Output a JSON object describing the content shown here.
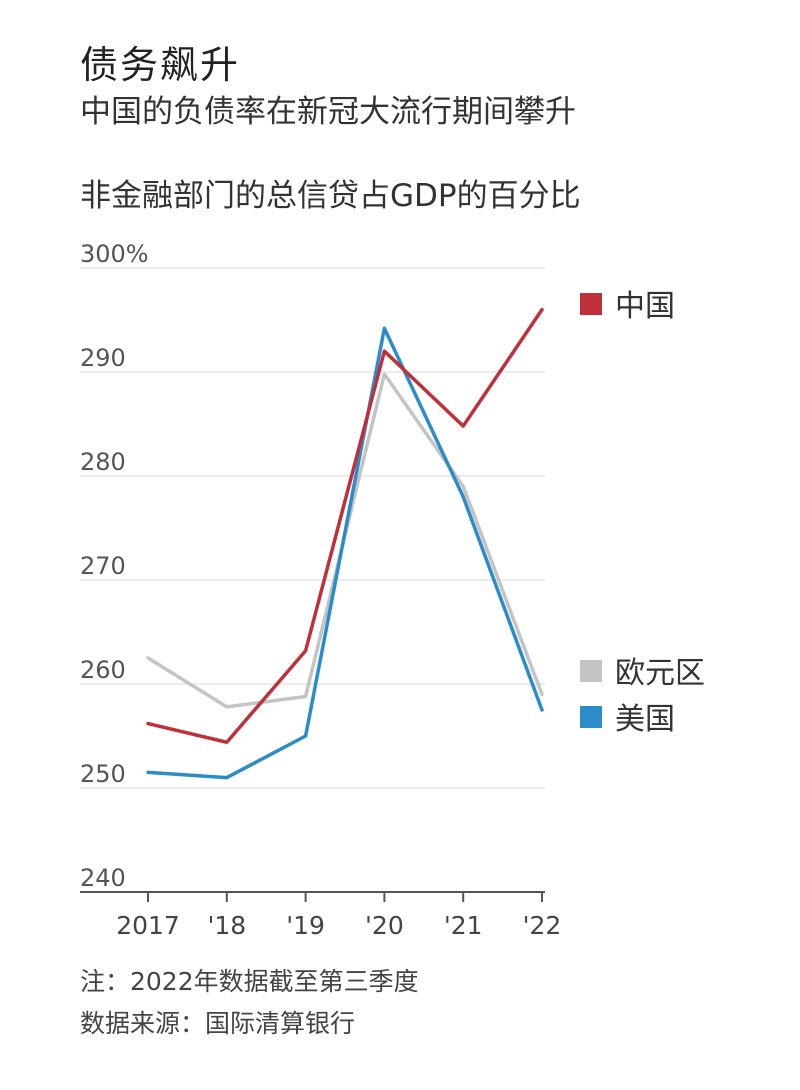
{
  "header": {
    "title": "债务飙升",
    "subtitle": "中国的负债率在新冠大流行期间攀升",
    "description": "非金融部门的总信贷占GDP的百分比"
  },
  "notes": {
    "note": "注：2022年数据截至第三季度",
    "source": "数据来源：国际清算银行"
  },
  "chart_data": {
    "type": "line",
    "x": [
      "2017",
      "'18",
      "'19",
      "'20",
      "'21",
      "'22"
    ],
    "ylim": [
      240,
      300
    ],
    "yticks": [
      240,
      250,
      260,
      270,
      280,
      290,
      300
    ],
    "ytick_labels": [
      "240",
      "250",
      "260",
      "270",
      "280",
      "290",
      "300%"
    ],
    "grid": true,
    "legend_position": "right",
    "series": [
      {
        "name": "中国",
        "color": "#c0303a",
        "values": [
          256.2,
          254.4,
          263.2,
          292.0,
          284.8,
          296.0
        ]
      },
      {
        "name": "欧元区",
        "color": "#c4c4c4",
        "values": [
          262.5,
          257.8,
          258.8,
          289.8,
          279.0,
          259.0
        ]
      },
      {
        "name": "美国",
        "color": "#2a8cc9",
        "values": [
          251.5,
          251.0,
          255.0,
          294.2,
          278.0,
          257.5
        ]
      }
    ]
  }
}
